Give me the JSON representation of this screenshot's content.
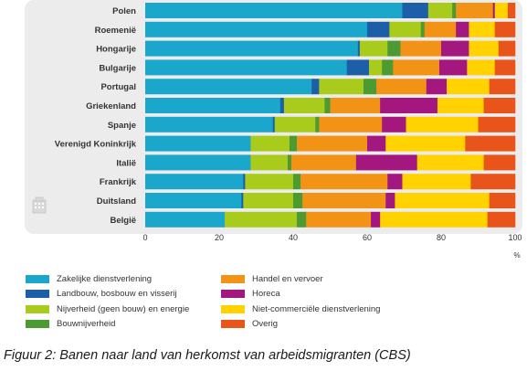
{
  "chart_data": {
    "type": "bar",
    "orientation": "horizontal",
    "stacked": true,
    "unit": "%",
    "xlim": [
      0,
      100
    ],
    "x_ticks": [
      "0",
      "20",
      "40",
      "60",
      "80",
      "100"
    ],
    "grid": false,
    "legend_position": "bottom",
    "categories": [
      "Polen",
      "Roemenië",
      "Hongarije",
      "Bulgarije",
      "Portugal",
      "Griekenland",
      "Spanje",
      "Verenigd Koninkrijk",
      "Italië",
      "Frankrijk",
      "Duitsland",
      "België"
    ],
    "series": [
      {
        "name": "Zakelijke dienstverlening",
        "color": "#1ba6cc",
        "values": [
          69.5,
          60.0,
          57.5,
          54.5,
          45.0,
          36.5,
          34.5,
          28.5,
          28.5,
          26.5,
          26.0,
          21.5
        ]
      },
      {
        "name": "Landbouw, bosbouw en visserij",
        "color": "#1c5ea8",
        "values": [
          7.0,
          6.0,
          0.5,
          6.0,
          2.0,
          1.0,
          0.5,
          0.0,
          0.0,
          0.5,
          0.5,
          0.0
        ]
      },
      {
        "name": "Nijverheid (geen bouw) en energie",
        "color": "#a9cb1c",
        "values": [
          6.5,
          8.5,
          7.5,
          3.5,
          12.0,
          11.0,
          11.0,
          10.5,
          10.0,
          13.0,
          13.5,
          19.5
        ]
      },
      {
        "name": "Bouwnijverheid",
        "color": "#4b9a32",
        "values": [
          1.0,
          1.0,
          3.5,
          3.0,
          3.5,
          1.5,
          1.0,
          2.0,
          1.0,
          2.0,
          2.5,
          2.5
        ]
      },
      {
        "name": "Handel en vervoer",
        "color": "#f39316",
        "values": [
          10.0,
          8.5,
          11.0,
          12.5,
          13.5,
          13.5,
          17.0,
          19.0,
          17.5,
          23.5,
          22.5,
          17.5
        ]
      },
      {
        "name": "Horeca",
        "color": "#a3177e",
        "values": [
          0.5,
          3.5,
          7.5,
          7.5,
          5.5,
          15.5,
          6.5,
          5.0,
          16.5,
          4.0,
          2.5,
          2.5
        ]
      },
      {
        "name": "Niet-commerciële dienstverlening",
        "color": "#ffd200",
        "values": [
          3.5,
          7.0,
          8.0,
          7.5,
          11.5,
          12.5,
          19.5,
          21.5,
          18.0,
          18.5,
          25.5,
          29.0
        ]
      },
      {
        "name": "Overig",
        "color": "#e8541a",
        "values": [
          2.0,
          5.5,
          4.5,
          5.5,
          7.0,
          8.5,
          10.0,
          13.5,
          8.5,
          12.0,
          7.0,
          7.5
        ]
      }
    ]
  },
  "legend": [
    {
      "label": "Zakelijke dienstverlening",
      "color": "#1ba6cc"
    },
    {
      "label": "Landbouw, bosbouw en visserij",
      "color": "#1c5ea8"
    },
    {
      "label": "Nijverheid (geen bouw) en energie",
      "color": "#a9cb1c"
    },
    {
      "label": "Bouwnijverheid",
      "color": "#4b9a32"
    },
    {
      "label": "Handel en vervoer",
      "color": "#f39316"
    },
    {
      "label": "Horeca",
      "color": "#a3177e"
    },
    {
      "label": "Niet-commerciële dienstverlening",
      "color": "#ffd200"
    },
    {
      "label": "Overig",
      "color": "#e8541a"
    }
  ],
  "watermark_icon": "building-icon",
  "caption": "Figuur 2: Banen naar land van herkomst van arbeidsmigranten (CBS)"
}
